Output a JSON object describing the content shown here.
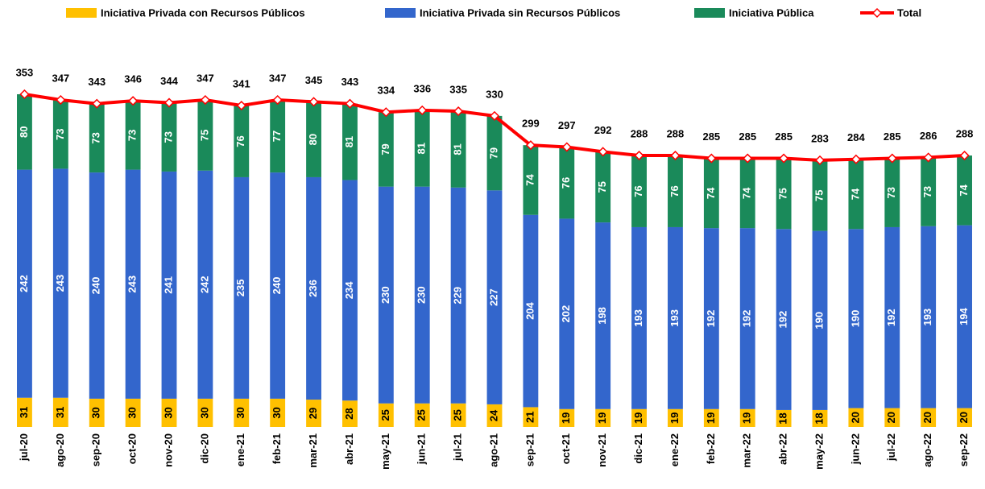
{
  "chart_data": {
    "type": "bar",
    "stacked": true,
    "categories": [
      "jul-20",
      "ago-20",
      "sep-20",
      "oct-20",
      "nov-20",
      "dic-20",
      "ene-21",
      "feb-21",
      "mar-21",
      "abr-21",
      "may-21",
      "jun-21",
      "jul-21",
      "ago-21",
      "sep-21",
      "oct-21",
      "nov-21",
      "dic-21",
      "ene-22",
      "feb-22",
      "mar-22",
      "abr-22",
      "may-22",
      "jun-22",
      "jul-22",
      "ago-22",
      "sep-22"
    ],
    "series": [
      {
        "name": "Iniciativa Privada con Recursos Públicos",
        "color": "#ffc000",
        "values": [
          31,
          31,
          30,
          30,
          30,
          30,
          30,
          30,
          29,
          28,
          25,
          25,
          25,
          24,
          21,
          19,
          19,
          19,
          19,
          19,
          19,
          18,
          18,
          20,
          20,
          20,
          20
        ]
      },
      {
        "name": "Iniciativa Privada sin Recursos Públicos",
        "color": "#3366cc",
        "values": [
          242,
          243,
          240,
          243,
          241,
          242,
          235,
          240,
          236,
          234,
          230,
          230,
          229,
          227,
          204,
          202,
          198,
          193,
          193,
          192,
          192,
          192,
          190,
          190,
          192,
          193,
          194
        ]
      },
      {
        "name": "Iniciativa Pública",
        "color": "#1a8a5a",
        "values": [
          80,
          73,
          73,
          73,
          73,
          75,
          76,
          77,
          80,
          81,
          79,
          81,
          81,
          79,
          74,
          76,
          75,
          76,
          76,
          74,
          74,
          75,
          75,
          74,
          73,
          73,
          74
        ]
      },
      {
        "name": "Total",
        "type": "line",
        "color": "#ff0000",
        "values": [
          353,
          347,
          343,
          346,
          344,
          347,
          341,
          347,
          345,
          343,
          334,
          336,
          335,
          330,
          299,
          297,
          292,
          288,
          288,
          285,
          285,
          285,
          283,
          284,
          285,
          286,
          288
        ]
      }
    ],
    "ylim": [
      0,
      400
    ]
  }
}
